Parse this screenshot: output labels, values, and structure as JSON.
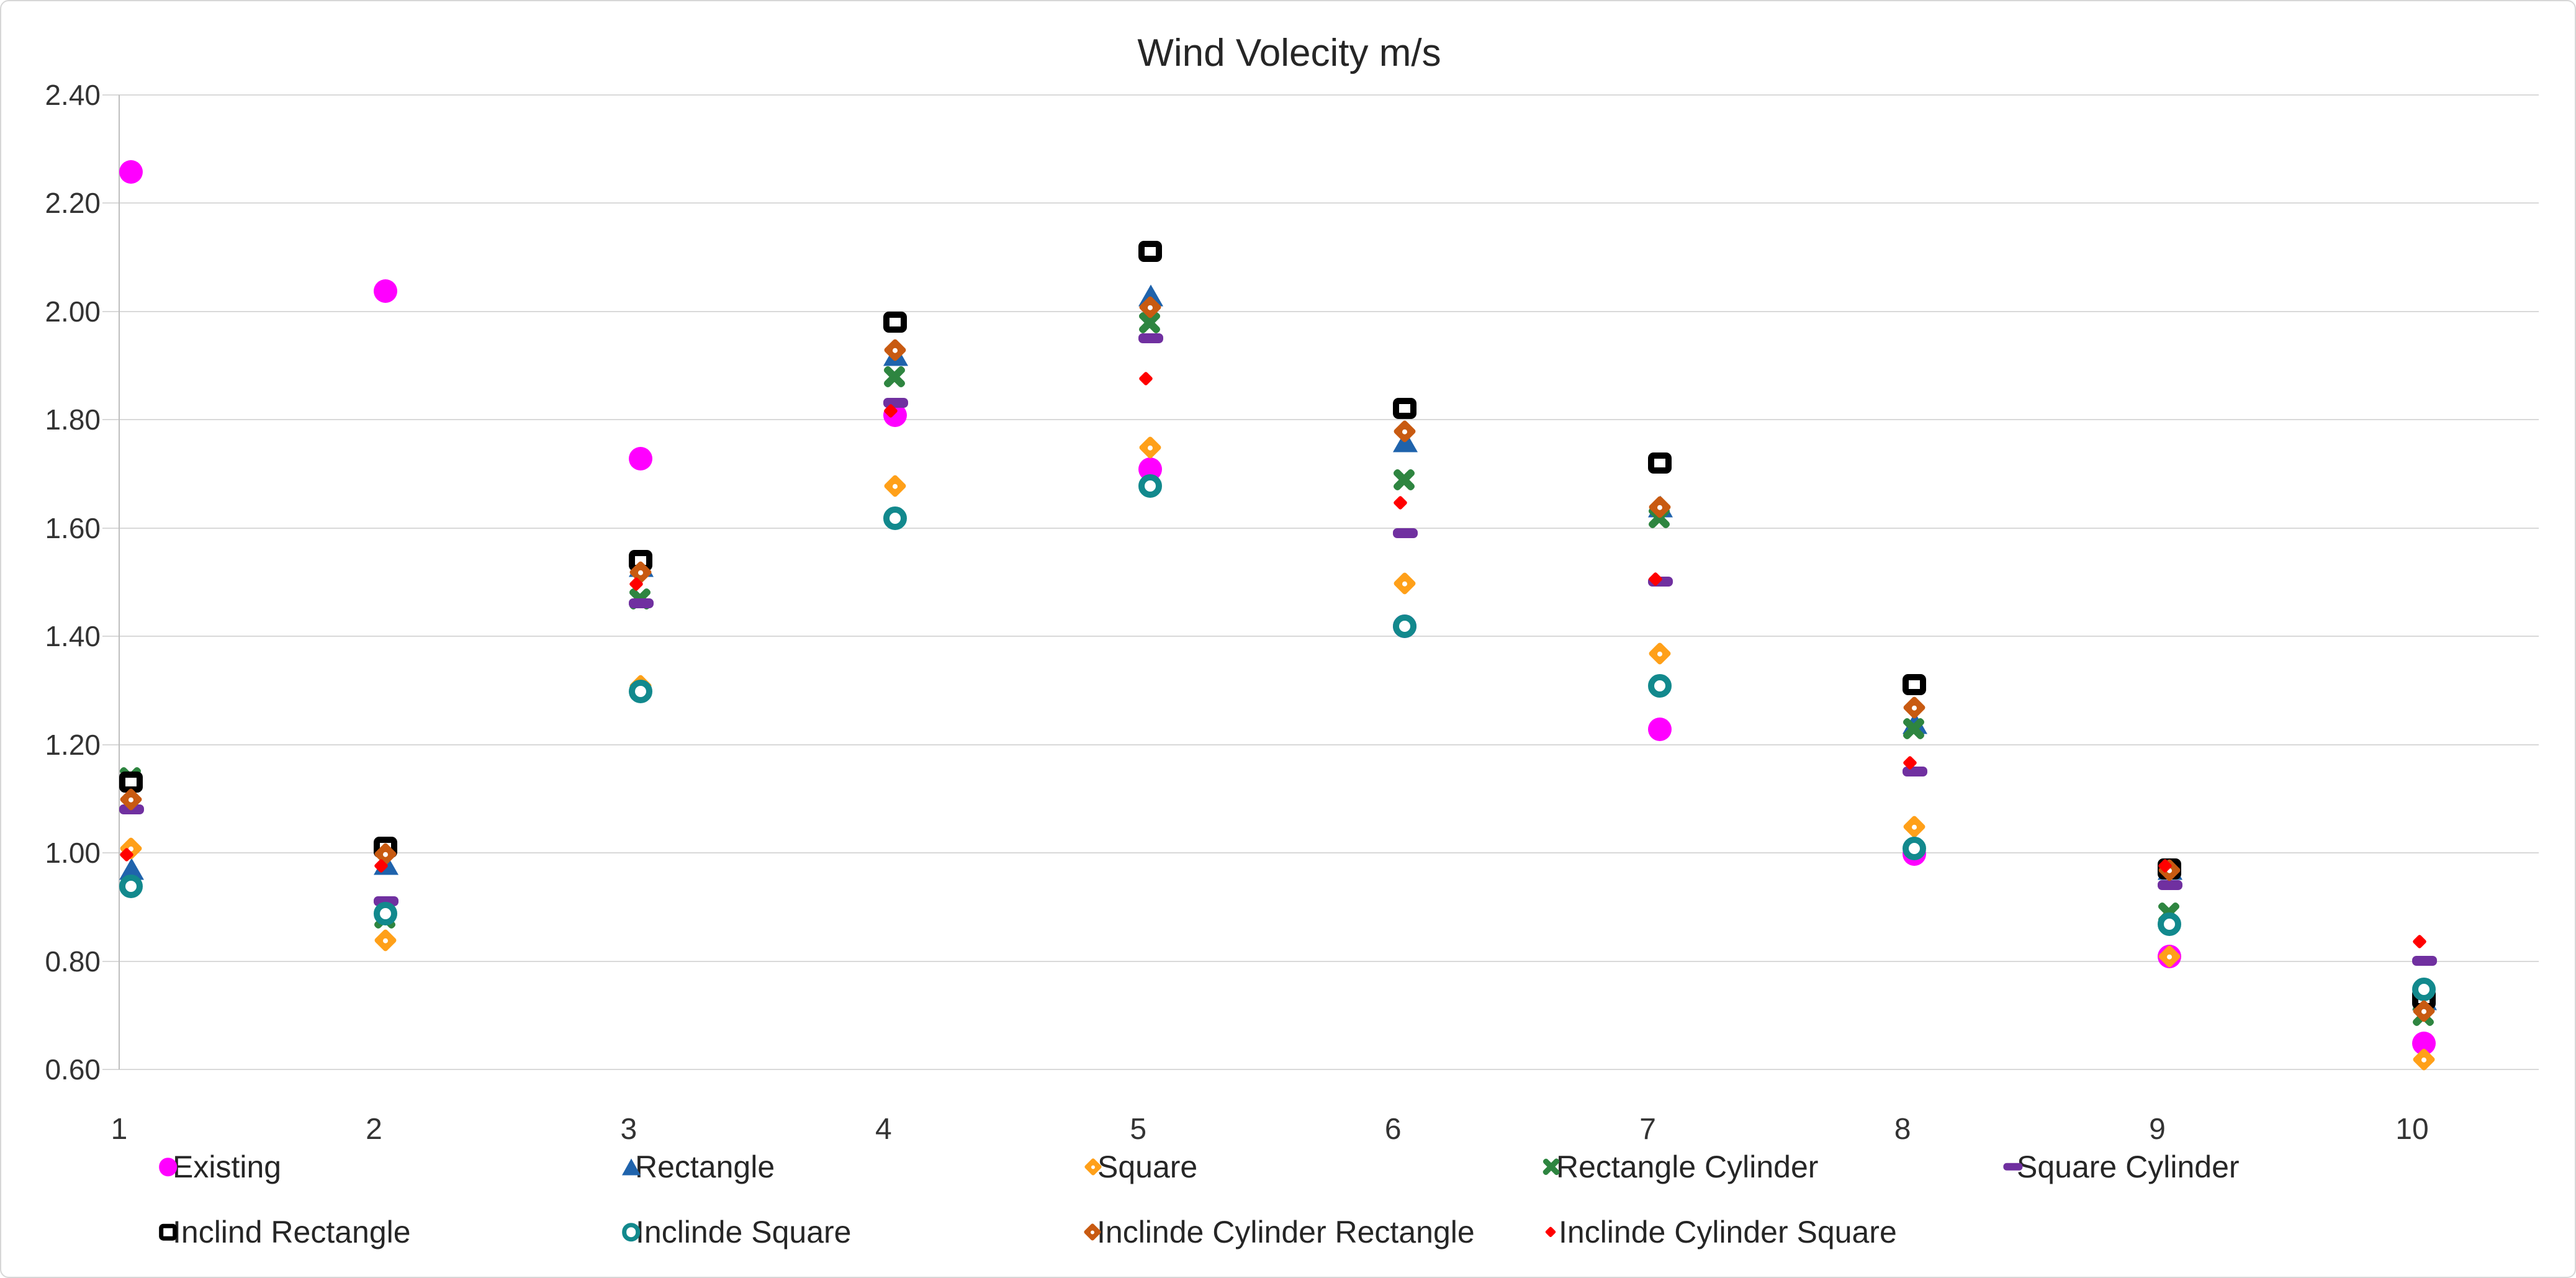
{
  "chart": {
    "title": "Wind Volecity m/s"
  },
  "chart_data": {
    "type": "scatter",
    "title": "Wind Volecity m/s",
    "xlabel": "",
    "ylabel": "",
    "x": [
      1,
      2,
      3,
      4,
      5,
      6,
      7,
      8,
      9,
      10
    ],
    "xtick_labels": [
      "1",
      "2",
      "3",
      "4",
      "5",
      "6",
      "7",
      "8",
      "9",
      "10"
    ],
    "ylim": [
      0.6,
      2.4
    ],
    "ytick_step": 0.2,
    "ytick_labels": [
      "2.40",
      "2.20",
      "2.00",
      "1.80",
      "1.60",
      "1.40",
      "1.20",
      "1.00",
      "0.80",
      "0.60"
    ],
    "grid": "horizontal",
    "legend_position": "bottom-two-rows",
    "legend_rows": [
      [
        "Existing",
        "Rectangle",
        "Square",
        "Rectangle Cylinder",
        "Square Cylinder"
      ],
      [
        "Inclind Rectangle",
        "Inclinde Square",
        "Inclinde Cylinder Rectangle",
        "Inclinde Cylinder Square"
      ]
    ],
    "series": [
      {
        "name": "Existing",
        "marker": "filled-circle",
        "color": "#FF00FF",
        "values": [
          2.28,
          2.06,
          1.75,
          1.83,
          1.73,
          1.44,
          1.25,
          1.02,
          0.83,
          0.67
        ]
      },
      {
        "name": "Rectangle",
        "marker": "triangle",
        "color": "#1F63AC",
        "values": [
          0.99,
          1.0,
          1.55,
          1.94,
          2.05,
          1.78,
          1.66,
          1.26,
          0.99,
          0.75
        ]
      },
      {
        "name": "Square",
        "marker": "diamond-dot",
        "color": "#FFA019",
        "values": [
          1.03,
          0.86,
          1.33,
          1.7,
          1.77,
          1.52,
          1.39,
          1.07,
          0.83,
          0.64
        ]
      },
      {
        "name": "Rectangle Cylinder",
        "marker": "bold-x",
        "color": "#2E8540",
        "values": [
          1.16,
          0.9,
          1.49,
          1.9,
          2.0,
          1.71,
          1.64,
          1.25,
          0.91,
          0.72
        ]
      },
      {
        "name": "Square Cylinder",
        "marker": "dash",
        "color": "#7030A0",
        "values": [
          1.09,
          0.92,
          1.47,
          1.84,
          1.96,
          1.6,
          1.51,
          1.16,
          0.95,
          0.81
        ]
      },
      {
        "name": "Inclind Rectangle",
        "marker": "open-square",
        "color": "#000000",
        "values": [
          1.15,
          1.03,
          1.56,
          2.0,
          2.13,
          1.84,
          1.74,
          1.33,
          0.99,
          0.75
        ]
      },
      {
        "name": "Inclinde Square",
        "marker": "open-circle",
        "color": "#12898D",
        "values": [
          0.96,
          0.91,
          1.32,
          1.64,
          1.7,
          1.44,
          1.33,
          1.03,
          0.89,
          0.77
        ]
      },
      {
        "name": "Inclinde Cylinder Rectangle",
        "marker": "diamond-dot",
        "color": "#C85A11",
        "values": [
          1.12,
          1.02,
          1.54,
          1.95,
          2.03,
          1.8,
          1.66,
          1.29,
          0.99,
          0.73
        ]
      },
      {
        "name": "Inclinde Cylinder Square",
        "marker": "small-diamond",
        "color": "#FF0000",
        "values": [
          1.01,
          0.99,
          1.51,
          1.83,
          1.89,
          1.66,
          1.52,
          1.18,
          0.99,
          0.85
        ]
      }
    ]
  }
}
